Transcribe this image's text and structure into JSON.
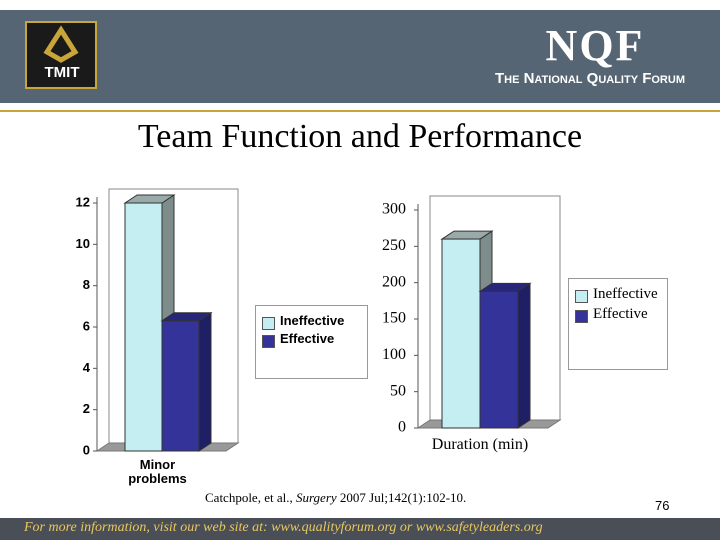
{
  "header": {
    "logo": "TMIT",
    "brand": "NQF",
    "tagline": "The National Quality Forum"
  },
  "title": "Team Function and Performance",
  "chart_data": [
    {
      "type": "bar",
      "categories": [
        "Minor problems"
      ],
      "series": [
        {
          "name": "Ineffective",
          "color": "#c4eef2",
          "values": [
            12
          ]
        },
        {
          "name": "Effective",
          "color": "#333399",
          "values": [
            6.3
          ]
        }
      ],
      "ylim": [
        0,
        12
      ],
      "yticks": [
        0,
        2,
        4,
        6,
        8,
        10,
        12
      ],
      "legend": "right"
    },
    {
      "type": "bar",
      "categories": [
        "Duration (min)"
      ],
      "series": [
        {
          "name": "Ineffective",
          "color": "#c4eef2",
          "values": [
            260
          ]
        },
        {
          "name": "Effective",
          "color": "#333399",
          "values": [
            188
          ]
        }
      ],
      "ylim": [
        0,
        300
      ],
      "yticks": [
        0,
        50,
        100,
        150,
        200,
        250,
        300
      ],
      "legend": "right"
    }
  ],
  "citation": {
    "authors": "Catchpole, et al.,",
    "journal": "Surgery",
    "details": "2007 Jul;142(1):102-10."
  },
  "page_number": "76",
  "footer": "For more information, visit our web site at: www.qualityforum.org or www.safetyleaders.org"
}
